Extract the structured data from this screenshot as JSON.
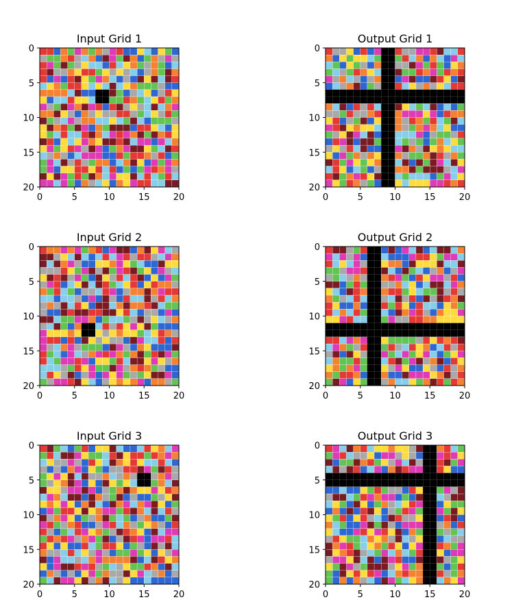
{
  "figure": {
    "panels": [
      {
        "title": "Input Grid 1",
        "seed": 11,
        "black": {
          "type": "block",
          "rows": [
            6,
            7
          ],
          "cols": [
            8,
            9
          ]
        }
      },
      {
        "title": "Output Grid 1",
        "seed": 21,
        "black": {
          "type": "cross",
          "rows": [
            6,
            7
          ],
          "cols": [
            8,
            9
          ]
        }
      },
      {
        "title": "Input Grid 2",
        "seed": 31,
        "black": {
          "type": "block",
          "rows": [
            11,
            12
          ],
          "cols": [
            6,
            7
          ]
        }
      },
      {
        "title": "Output Grid 2",
        "seed": 41,
        "black": {
          "type": "cross",
          "rows": [
            11,
            12
          ],
          "cols": [
            6,
            7
          ]
        }
      },
      {
        "title": "Input Grid 3",
        "seed": 51,
        "black": {
          "type": "block",
          "rows": [
            4,
            5
          ],
          "cols": [
            14,
            15
          ]
        }
      },
      {
        "title": "Output Grid 3",
        "seed": 61,
        "black": {
          "type": "cross",
          "rows": [
            4,
            5
          ],
          "cols": [
            14,
            15
          ]
        }
      }
    ],
    "grid_size": 20,
    "tick_labels": [
      "0",
      "5",
      "10",
      "15",
      "20"
    ],
    "tick_values": [
      0,
      5,
      10,
      15,
      20
    ],
    "palette": [
      "#F58231",
      "#A9A9A9",
      "#E53935",
      "#2E67D1",
      "#FFDC3C",
      "#87CEEB",
      "#63C454",
      "#E03BB7",
      "#7A1A22"
    ],
    "black_color": "#000000"
  }
}
